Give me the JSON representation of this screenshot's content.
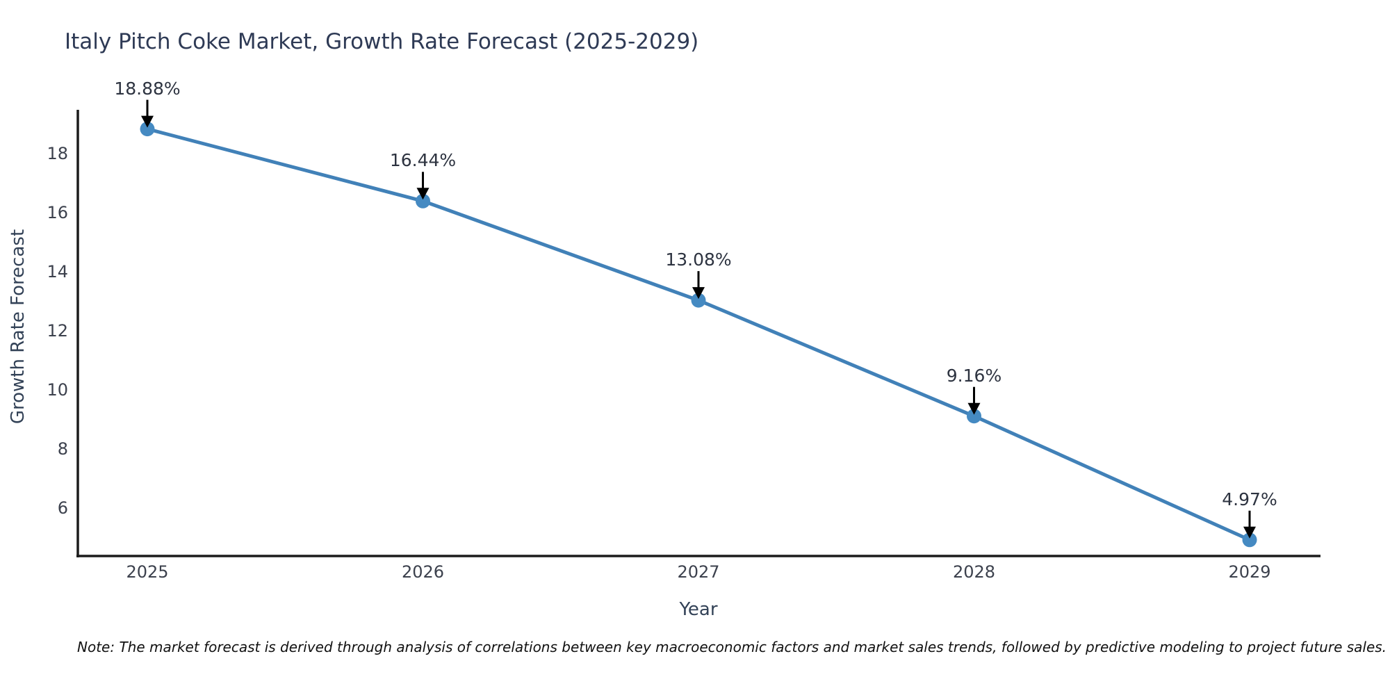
{
  "chart_data": {
    "type": "line",
    "title": "Italy Pitch Coke Market, Growth Rate Forecast (2025-2029)",
    "xlabel": "Year",
    "ylabel": "Growth Rate Forecast",
    "x": [
      2025,
      2026,
      2027,
      2028,
      2029
    ],
    "series": [
      {
        "name": "Growth Rate Forecast",
        "values": [
          18.88,
          16.44,
          13.08,
          9.16,
          4.97
        ]
      }
    ],
    "point_labels": [
      "18.88%",
      "16.44%",
      "13.08%",
      "9.16%",
      "4.97%"
    ],
    "yticks": [
      18,
      16,
      14,
      12,
      10,
      8,
      6
    ],
    "xticks": [
      "2025",
      "2026",
      "2027",
      "2028",
      "2029"
    ],
    "ylim": [
      4.4,
      19.5
    ],
    "xlim": [
      2024.74,
      2029.26
    ],
    "grid": false,
    "legend": "none",
    "annotation_style": "black-down-arrows",
    "colors": {
      "line": "#4181b8",
      "marker": "#458ac2",
      "axis": "#1c1c1c",
      "arrow": "#000000",
      "title_text": "#2e3a55",
      "axis_label_text": "#334257",
      "tick_text": "#3c414d",
      "annotation_text": "#2d3340",
      "background": "#ffffff"
    },
    "note": "Note: The market forecast is derived through analysis of correlations between key macroeconomic factors and market sales trends, followed by predictive modeling to project future sales."
  }
}
